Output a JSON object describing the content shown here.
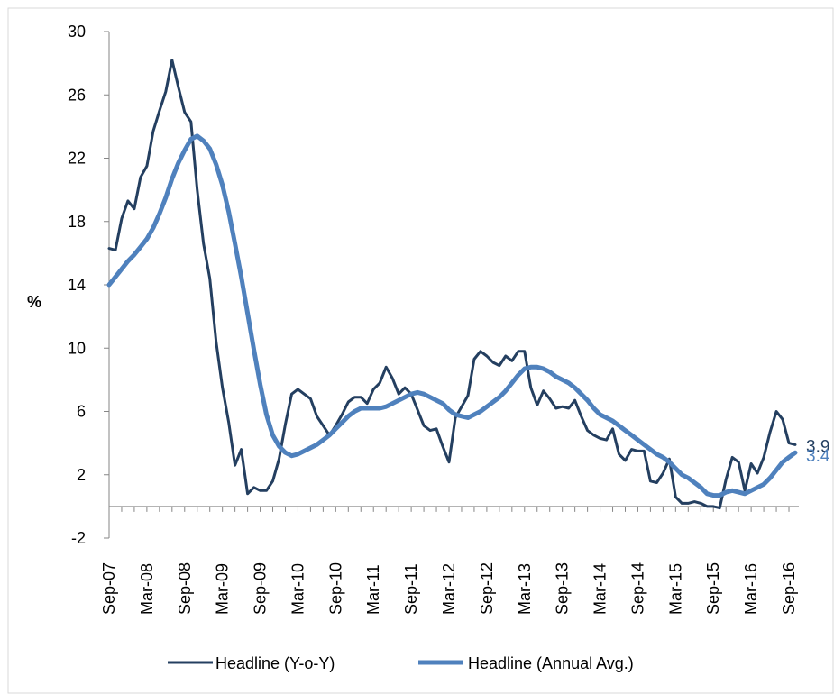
{
  "chart_data": {
    "type": "line",
    "ylabel": "%",
    "ylim": [
      -2,
      30
    ],
    "yticks": [
      "-2",
      "2",
      "6",
      "10",
      "14",
      "18",
      "22",
      "26",
      "30"
    ],
    "xtick_labels": [
      "Sep-07",
      "Mar-08",
      "Sep-08",
      "Mar-09",
      "Sep-09",
      "Mar-10",
      "Sep-10",
      "Mar-11",
      "Sep-11",
      "Mar-12",
      "Sep-12",
      "Mar-13",
      "Sep-13",
      "Mar-14",
      "Sep-14",
      "Mar-15",
      "Sep-15",
      "Mar-16",
      "Sep-16"
    ],
    "x_start": "Sep-07",
    "legend_position": "bottom",
    "series": [
      {
        "name": "Headline (Y-o-Y)",
        "color": "#243F60",
        "end_label": "3.9",
        "values": [
          16.3,
          16.2,
          18.2,
          19.3,
          18.8,
          20.8,
          21.5,
          23.7,
          25.0,
          26.2,
          28.2,
          26.5,
          24.9,
          24.3,
          20.0,
          16.6,
          14.4,
          10.4,
          7.5,
          5.3,
          2.6,
          3.6,
          0.8,
          1.2,
          1.0,
          1.0,
          1.6,
          3.0,
          5.2,
          7.1,
          7.4,
          7.1,
          6.8,
          5.7,
          5.1,
          4.5,
          5.1,
          5.8,
          6.6,
          6.9,
          6.9,
          6.5,
          7.4,
          7.8,
          8.8,
          8.1,
          7.1,
          7.5,
          7.1,
          6.1,
          5.1,
          4.8,
          4.9,
          3.8,
          2.8,
          5.6,
          6.3,
          7.0,
          9.3,
          9.8,
          9.5,
          9.1,
          8.9,
          9.5,
          9.2,
          9.8,
          9.8,
          7.5,
          6.4,
          7.3,
          6.8,
          6.2,
          6.3,
          6.2,
          6.7,
          5.7,
          4.8,
          4.5,
          4.3,
          4.2,
          4.9,
          3.3,
          2.9,
          3.6,
          3.5,
          3.5,
          1.6,
          1.5,
          2.1,
          3.0,
          0.6,
          0.2,
          0.2,
          0.3,
          0.2,
          0.0,
          0.0,
          -0.1,
          1.7,
          3.1,
          2.8,
          1.0,
          2.7,
          2.1,
          3.1,
          4.7,
          6.0,
          5.5,
          4.0,
          3.9
        ]
      },
      {
        "name": "Headline (Annual Avg.)",
        "color": "#4F81BD",
        "end_label": "3.4",
        "values": [
          14.0,
          14.5,
          15.0,
          15.5,
          15.9,
          16.4,
          16.9,
          17.6,
          18.5,
          19.5,
          20.7,
          21.7,
          22.5,
          23.2,
          23.4,
          23.1,
          22.6,
          21.6,
          20.3,
          18.6,
          16.6,
          14.5,
          12.2,
          9.9,
          7.7,
          5.8,
          4.5,
          3.8,
          3.4,
          3.2,
          3.3,
          3.5,
          3.7,
          3.9,
          4.2,
          4.5,
          4.9,
          5.3,
          5.7,
          6.0,
          6.2,
          6.2,
          6.2,
          6.2,
          6.3,
          6.5,
          6.7,
          6.9,
          7.1,
          7.2,
          7.1,
          6.9,
          6.7,
          6.5,
          6.1,
          5.8,
          5.7,
          5.6,
          5.8,
          6.0,
          6.3,
          6.6,
          6.9,
          7.3,
          7.8,
          8.3,
          8.7,
          8.8,
          8.8,
          8.7,
          8.5,
          8.2,
          8.0,
          7.8,
          7.5,
          7.1,
          6.7,
          6.2,
          5.8,
          5.6,
          5.4,
          5.1,
          4.8,
          4.5,
          4.2,
          3.9,
          3.6,
          3.3,
          3.1,
          2.8,
          2.4,
          2.0,
          1.8,
          1.5,
          1.2,
          0.8,
          0.7,
          0.7,
          0.9,
          1.0,
          0.9,
          0.8,
          1.0,
          1.2,
          1.4,
          1.8,
          2.3,
          2.8,
          3.1,
          3.4
        ]
      }
    ]
  }
}
